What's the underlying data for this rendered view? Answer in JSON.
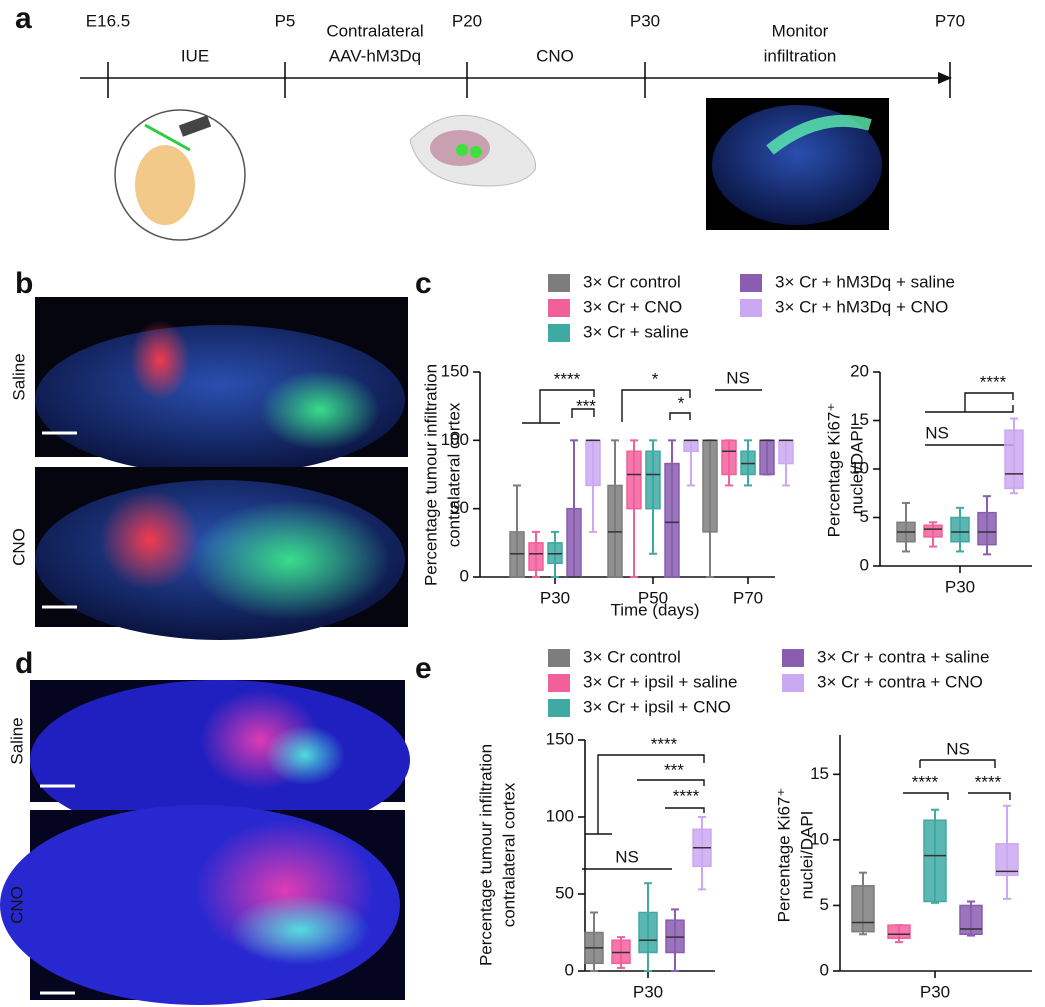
{
  "figure": {
    "letters": [
      "a",
      "b",
      "c",
      "d",
      "e"
    ],
    "timeline": {
      "points": [
        "E16.5",
        "P5",
        "P20",
        "P30",
        "P70"
      ],
      "phases": [
        [
          "IUE"
        ],
        [
          "Contralateral",
          "AAV-hM3Dq"
        ],
        [
          "CNO"
        ],
        [
          "Monitor",
          "infiltration"
        ]
      ]
    },
    "image_rows": {
      "b": [
        "Saline",
        "CNO"
      ],
      "d": [
        "Saline",
        "CNO"
      ]
    }
  },
  "chart_data": [
    {
      "type": "box",
      "ylabel": [
        "Percentage tumour infiltration",
        "contralateral cortex"
      ],
      "xlabel": "Time (days)",
      "categories": [
        "P30",
        "P50",
        "P70"
      ],
      "ylim": [
        0,
        150
      ],
      "yticks": [
        0,
        50,
        100,
        150
      ],
      "series": [
        {
          "name": "3× Cr control",
          "color": "#7d7d7d",
          "values": [
            {
              "min": 0,
              "q1": 0,
              "median": 17,
              "q3": 33,
              "max": 67
            },
            {
              "min": 0,
              "q1": 0,
              "median": 33,
              "q3": 67,
              "max": 100
            },
            {
              "min": 0,
              "q1": 33,
              "median": 100,
              "q3": 100,
              "max": 100
            }
          ]
        },
        {
          "name": "3× Cr + CNO",
          "color": "#f2609c",
          "values": [
            {
              "min": 0,
              "q1": 5,
              "median": 17,
              "q3": 25,
              "max": 33
            },
            {
              "min": 0,
              "q1": 50,
              "median": 75,
              "q3": 92,
              "max": 100
            },
            {
              "min": 67,
              "q1": 75,
              "median": 92,
              "q3": 100,
              "max": 100
            }
          ]
        },
        {
          "name": "3× Cr + saline",
          "color": "#3fa9a3",
          "values": [
            {
              "min": 0,
              "q1": 10,
              "median": 17,
              "q3": 25,
              "max": 33
            },
            {
              "min": 17,
              "q1": 50,
              "median": 75,
              "q3": 92,
              "max": 100
            },
            {
              "min": 67,
              "q1": 75,
              "median": 83,
              "q3": 92,
              "max": 100
            }
          ]
        },
        {
          "name": "3× Cr + hM3Dq + saline",
          "color": "#8a5db0",
          "values": [
            {
              "min": 0,
              "q1": 0,
              "median": 0,
              "q3": 50,
              "max": 100
            },
            {
              "min": 0,
              "q1": 0,
              "median": 40,
              "q3": 83,
              "max": 100
            },
            {
              "min": 75,
              "q1": 75,
              "median": 100,
              "q3": 100,
              "max": 100
            }
          ]
        },
        {
          "name": "3× Cr + hM3Dq + CNO",
          "color": "#cba8f2",
          "values": [
            {
              "min": 33,
              "q1": 67,
              "median": 100,
              "q3": 100,
              "max": 100
            },
            {
              "min": 67,
              "q1": 92,
              "median": 100,
              "q3": 100,
              "max": 100
            },
            {
              "min": 67,
              "q1": 83,
              "median": 100,
              "q3": 100,
              "max": 100
            }
          ]
        }
      ],
      "annotations": [
        "****",
        "***",
        "*",
        "*",
        "NS"
      ]
    },
    {
      "type": "box",
      "ylabel": [
        "Percentage Ki67⁺",
        "nuclei/DAPI"
      ],
      "categories": [
        "P30"
      ],
      "ylim": [
        0,
        20
      ],
      "yticks": [
        0,
        5,
        10,
        15,
        20
      ],
      "series": [
        {
          "color": "#7d7d7d",
          "values": [
            {
              "min": 1.5,
              "q1": 2.5,
              "median": 3.5,
              "q3": 4.5,
              "max": 6.5
            }
          ]
        },
        {
          "color": "#f2609c",
          "values": [
            {
              "min": 2,
              "q1": 3,
              "median": 3.8,
              "q3": 4.2,
              "max": 4.5
            }
          ]
        },
        {
          "color": "#3fa9a3",
          "values": [
            {
              "min": 1.5,
              "q1": 2.5,
              "median": 3.5,
              "q3": 5,
              "max": 6
            }
          ]
        },
        {
          "color": "#8a5db0",
          "values": [
            {
              "min": 1.2,
              "q1": 2.2,
              "median": 3.5,
              "q3": 5.5,
              "max": 7.2
            }
          ]
        },
        {
          "color": "#cba8f2",
          "values": [
            {
              "min": 7.5,
              "q1": 8,
              "median": 9.5,
              "q3": 14,
              "max": 15.2
            }
          ]
        }
      ],
      "annotations": [
        "****",
        "NS"
      ]
    },
    {
      "type": "box",
      "ylabel": [
        "Percentage tumour infiltration",
        "contralateral cortex"
      ],
      "categories": [
        "P30"
      ],
      "ylim": [
        0,
        150
      ],
      "yticks": [
        0,
        50,
        100,
        150
      ],
      "series": [
        {
          "name": "3× Cr control",
          "color": "#7d7d7d",
          "values": [
            {
              "min": 0,
              "q1": 5,
              "median": 15,
              "q3": 25,
              "max": 38
            }
          ]
        },
        {
          "name": "3× Cr + ipsil + saline",
          "color": "#f2609c",
          "values": [
            {
              "min": 2,
              "q1": 5,
              "median": 12,
              "q3": 20,
              "max": 22
            }
          ]
        },
        {
          "name": "3× Cr + ipsil + CNO",
          "color": "#3fa9a3",
          "values": [
            {
              "min": 0,
              "q1": 12,
              "median": 20,
              "q3": 38,
              "max": 57
            }
          ]
        },
        {
          "name": "3× Cr + contra + saline",
          "color": "#8a5db0",
          "values": [
            {
              "min": 0,
              "q1": 12,
              "median": 22,
              "q3": 33,
              "max": 40
            }
          ]
        },
        {
          "name": "3× Cr + contra + CNO",
          "color": "#cba8f2",
          "values": [
            {
              "min": 53,
              "q1": 68,
              "median": 80,
              "q3": 92,
              "max": 100
            }
          ]
        }
      ],
      "annotations": [
        "****",
        "***",
        "****",
        "NS"
      ]
    },
    {
      "type": "box",
      "ylabel": [
        "Percentage Ki67⁺",
        "nuclei/DAPI"
      ],
      "categories": [
        "P30"
      ],
      "ylim": [
        0,
        18
      ],
      "yticks": [
        0,
        5,
        10,
        15
      ],
      "series": [
        {
          "color": "#7d7d7d",
          "values": [
            {
              "min": 2.8,
              "q1": 3,
              "median": 3.7,
              "q3": 6.5,
              "max": 7.5
            }
          ]
        },
        {
          "color": "#f2609c",
          "values": [
            {
              "min": 2.2,
              "q1": 2.5,
              "median": 2.8,
              "q3": 3.5,
              "max": 3.5
            }
          ]
        },
        {
          "color": "#3fa9a3",
          "values": [
            {
              "min": 5.2,
              "q1": 5.3,
              "median": 8.8,
              "q3": 11.5,
              "max": 12.3
            }
          ]
        },
        {
          "color": "#8a5db0",
          "values": [
            {
              "min": 2.7,
              "q1": 2.8,
              "median": 3.2,
              "q3": 5,
              "max": 5.3
            }
          ]
        },
        {
          "color": "#cba8f2",
          "values": [
            {
              "min": 5.5,
              "q1": 7.3,
              "median": 7.6,
              "q3": 9.7,
              "max": 12.6
            }
          ]
        }
      ],
      "annotations": [
        "NS",
        "****",
        "****"
      ]
    }
  ]
}
